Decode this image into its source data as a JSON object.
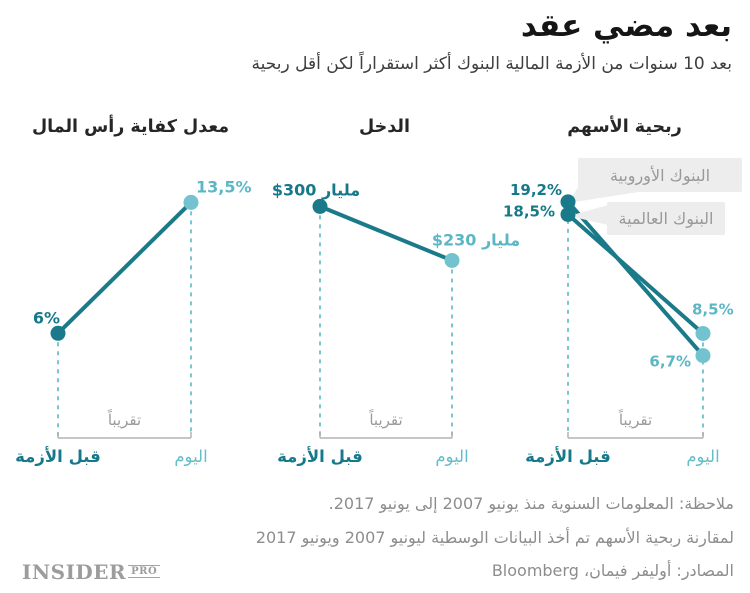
{
  "header": {
    "title": "بعد مضي عقد",
    "subtitle": "بعد 10 سنوات من الأزمة المالية البنوك أكثر استقراراً لكن أقل ربحية"
  },
  "colors": {
    "dark_teal": "#1b7a89",
    "dark_teal_text": "#16798a",
    "light_teal": "#72c3cf",
    "light_teal_text": "#5cb7c5",
    "today_label": "#66bdca",
    "dashed": "#7cc6d1",
    "axis_gray": "#b4b4b4",
    "gray_text": "#9b9b9b",
    "legend_bg": "#ededed",
    "legend_text": "#999999"
  },
  "chart_data": [
    {
      "id": "return-on-equity",
      "type": "slope",
      "title": "ربحية الأسهم",
      "categories": [
        "قبل الأزمة",
        "اليوم"
      ],
      "x_start_label": "قبل الأزمة",
      "x_end_label": "اليوم",
      "x_mid_label": "تقريباً",
      "series": [
        {
          "name": "البنوك الأوروبية",
          "start": 19.2,
          "end": 6.7,
          "start_label": "19,2%",
          "end_label": "6,7%"
        },
        {
          "name": "البنوك العالمية",
          "start": 18.5,
          "end": 8.5,
          "start_label": "18,5%",
          "end_label": "8,5%"
        }
      ],
      "unit": "%",
      "ylim": [
        0,
        23
      ]
    },
    {
      "id": "income",
      "type": "slope",
      "title": "الدخل",
      "categories": [
        "قبل الأزمة",
        "اليوم"
      ],
      "x_start_label": "قبل الأزمة",
      "x_end_label": "اليوم",
      "x_mid_label": "تقريباً",
      "series": [
        {
          "name": "الدخل",
          "start": 300,
          "end": 230,
          "start_label": "$300 مليار",
          "end_label": "$230 مليار"
        }
      ],
      "unit": "مليار $",
      "ylim": [
        0,
        373
      ]
    },
    {
      "id": "capital-adequacy-ratio",
      "type": "slope",
      "title": "معدل كفاية رأس المال",
      "categories": [
        "قبل الأزمة",
        "اليوم"
      ],
      "x_start_label": "قبل الأزمة",
      "x_end_label": "اليوم",
      "x_mid_label": "تقريباً",
      "series": [
        {
          "name": "معدل كفاية رأس المال",
          "start": 6,
          "end": 13.5,
          "start_label": "6%",
          "end_label": "13,5%"
        }
      ],
      "unit": "%",
      "ylim": [
        0,
        16.5
      ]
    }
  ],
  "footer": {
    "note1": "ملاحظة: المعلومات السنوية منذ يونيو 2007 إلى يونيو 2017.",
    "note2": "لمقارنة ربحية الأسهم تم أخذ البيانات الوسطية ليونيو 2007 ويونيو 2017",
    "note3": "المصادر: أوليفر فيمان، Bloomberg"
  },
  "logo": {
    "name": "INSIDER",
    "suffix": "PRO"
  }
}
